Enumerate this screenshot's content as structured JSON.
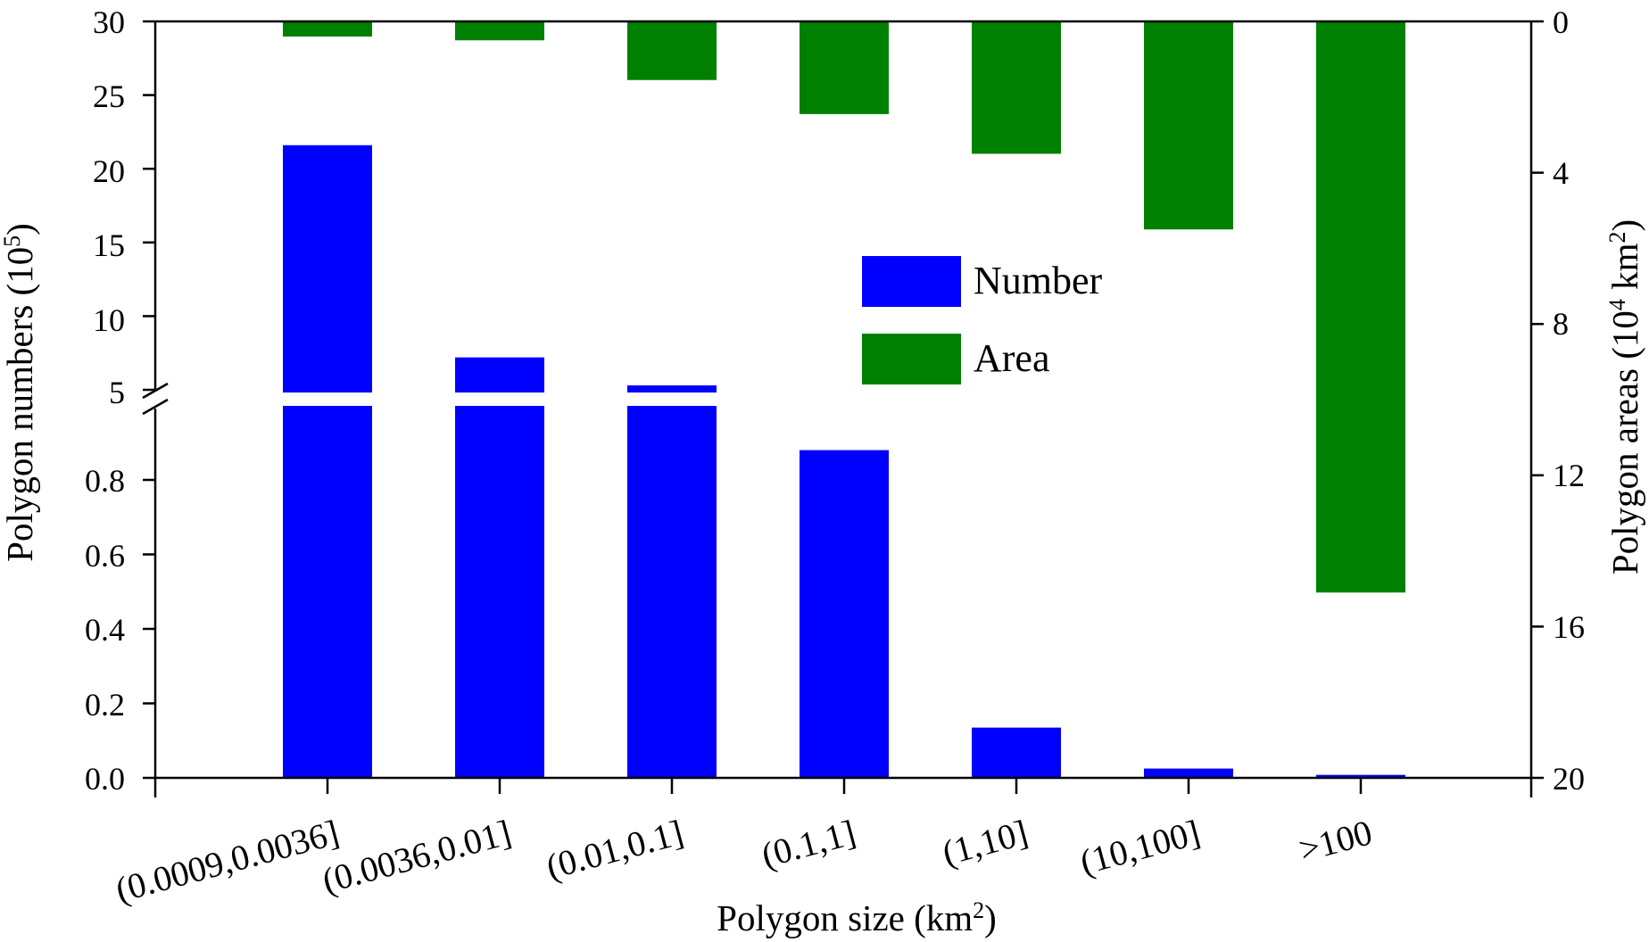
{
  "chart_data": {
    "type": "bar",
    "categories": [
      "(0.0009,0.0036]",
      "(0.0036,0.01]",
      "(0.01,0.1]",
      "(0.1,1]",
      "(1,10]",
      "(10,100]",
      ">100"
    ],
    "xlabel": "Polygon size (km",
    "xlabel_sup": "2",
    "xlabel_end": ")",
    "left_axis": {
      "label": "Polygon numbers (10",
      "label_sup": "5",
      "label_end": ")",
      "broken": true,
      "lower_range": [
        0,
        1.0
      ],
      "lower_ticks": [
        "0.0",
        "0.2",
        "0.4",
        "0.6",
        "0.8"
      ],
      "upper_range": [
        5,
        30
      ],
      "upper_ticks": [
        "5",
        "10",
        "15",
        "20",
        "25",
        "30"
      ]
    },
    "right_axis": {
      "label": "Polygon areas (10",
      "label_sup": "4",
      "label_mid": " km",
      "label_sup2": "2",
      "label_end": ")",
      "inverted": true,
      "range": [
        0,
        20
      ],
      "ticks": [
        "0",
        "4",
        "8",
        "12",
        "16",
        "20"
      ]
    },
    "series": [
      {
        "name": "Number",
        "color": "#0000ff",
        "axis": "left",
        "values": [
          21.6,
          7.2,
          5.3,
          0.88,
          0.135,
          0.025,
          0.008
        ]
      },
      {
        "name": "Area",
        "color": "#008000",
        "axis": "right",
        "values": [
          0.4,
          0.5,
          1.55,
          2.45,
          3.5,
          5.5,
          15.1
        ]
      }
    ],
    "legend_position": "center",
    "grid": false
  }
}
